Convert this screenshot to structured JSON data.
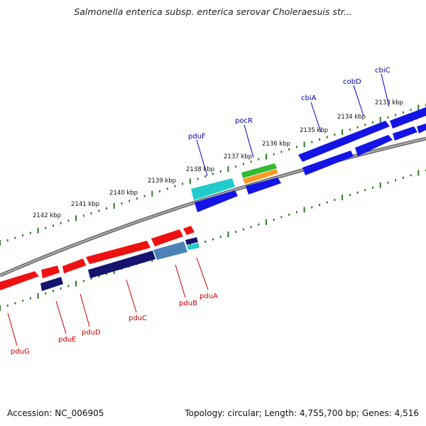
{
  "title": "Salmonella enterica subsp. enterica serovar Choleraesuis str...",
  "footer": {
    "accession": "Accession: NC_006905",
    "summary": "Topology: circular; Length: 4,755,700 bp; Genes: 4,516"
  },
  "ticks": [
    "2133 kbp",
    "2134 kbp",
    "2135 kbp",
    "2136 kbp",
    "2137 kbp",
    "2138 kbp",
    "2139 kbp",
    "2140 kbp",
    "2141 kbp",
    "2142 kbp"
  ],
  "colors": {
    "backbone": "#8a8a8a",
    "dots": "#2a7a20",
    "blue": "#1212e6",
    "red": "#ee1111",
    "navy": "#14146e",
    "cyan": "#22cccc",
    "green": "#33bb33",
    "orange": "#ff9922",
    "steel": "#4b82b8",
    "label_top": "#0000aa",
    "label_bottom": "#cc0000"
  },
  "top_labels": [
    "cbiC",
    "cobD",
    "cbiA",
    "pocR",
    "pduF"
  ],
  "bottom_labels": [
    "pduA",
    "pduB",
    "pduC",
    "pduD",
    "pduE",
    "pduG"
  ]
}
